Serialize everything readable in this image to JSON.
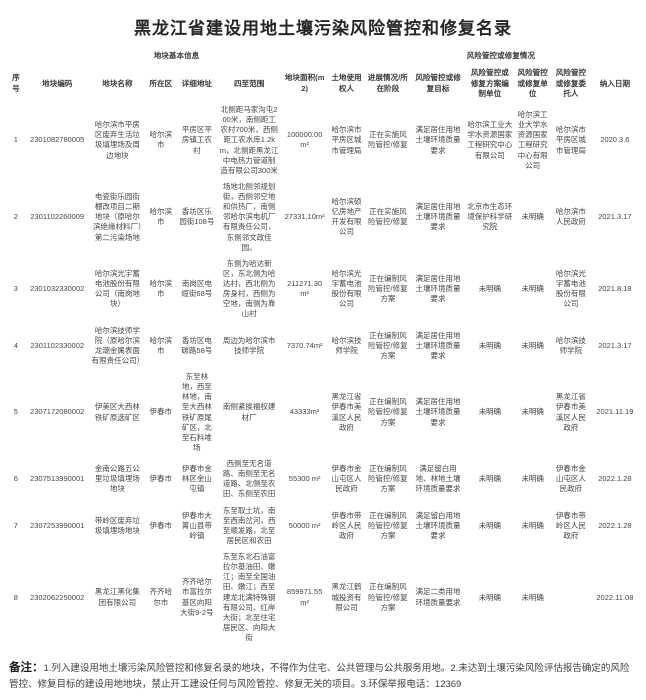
{
  "title": "黑龙江省建设用地土壤污染风险管控和修复名录",
  "colors": {
    "text": "#454545",
    "title": "#262626"
  },
  "table": {
    "group_headers": {
      "basic_info": "地块基本信息",
      "risk_info": "风险管控或修复情况"
    },
    "columns": [
      "序号",
      "地块编码",
      "地块名称",
      "所在区",
      "详细地址",
      "四至范围",
      "地块面积(m2)",
      "土地使用权人",
      "进展情况/所在阶段",
      "风险管控或修复目标",
      "风险管控或修复方案编制单位",
      "风险管控或修复单位",
      "风险管控或修复委托人",
      "纳入日期"
    ],
    "column_keys": [
      "index",
      "code",
      "name",
      "district",
      "address",
      "boundary",
      "area",
      "land-user",
      "progress",
      "target",
      "plan-unit",
      "remediation-unit",
      "client",
      "date"
    ],
    "rows": [
      [
        "1",
        "2301082780005",
        "哈尔滨市平房区废弃生活垃圾填埋场及周边地块",
        "哈尔滨市",
        "平房区平房镇工农村",
        "北侧距马家沟屯200米，南侧距工农村700米，西侧距工农水库1.2km，北侧距黑龙江中电热力管道制造有限公司300米",
        "100000.00 m²",
        "哈尔滨市平房区城市管理局",
        "正在实施风险管控/修复",
        "满足居住用地土壤环境质量要求",
        "哈尔滨工业大学水资源国家工程研究中心有限公司",
        "哈尔滨工业大学水资源国家工程研究中心有限公司",
        "哈尔滨市平房区城市管理局",
        "2020.3.6"
      ],
      [
        "2",
        "2301102260009",
        "电瓷街乐园街棚改项目二期地块（原哈尔滨绝缘材料厂）第二污染场地",
        "哈尔滨市",
        "香坊区乐园街108号",
        "场地北侧邻规划街，西侧邻空地和供热厂，南侧邻哈尔滨电机厂有限责任公司，东侧邻文政佳园。",
        "27331.10m²",
        "哈尔滨硕亿房地产开发有限公司",
        "正在实施风险管控/修复",
        "满足居住用地土壤环境质量要求",
        "北京市生态环境保护科学研究院",
        "未明确",
        "哈尔滨市人民政府",
        "2021.3.17"
      ],
      [
        "3",
        "2301032330002",
        "哈尔滨光宇蓄电池股份有限公司（南岗地块）",
        "哈尔滨市",
        "南岗区电缆街68号",
        "东侧为哈达新区，东北侧为哈达村，西北侧为房身村，西侧为空地，南侧为靠山村",
        "211271.30 m²",
        "哈尔滨光宇蓄电池股份有限公司",
        "正在编制风险管控/修复方案",
        "满足居住用地土壤环境质量要求",
        "未明确",
        "未明确",
        "哈尔滨光宇蓄电池股份有限公司",
        "2021.8.18"
      ],
      [
        "4",
        "2301102330002",
        "哈尔滨技师学院（原哈尔滨龙潮金属表面有限责任公司）",
        "哈尔滨市",
        "香坊区电碳路58号",
        "周边为哈尔滨市技师学院",
        "7370.74m²",
        "哈尔滨技师学院",
        "正在编制风险管控/修复方案",
        "满足居住用地土壤环境质量要求",
        "未明确",
        "未明确",
        "哈尔滨技师学院",
        "2021.3.17"
      ],
      [
        "5",
        "2307172080002",
        "伊美区大西林铁矿原选矿区",
        "伊春市",
        "东至林地，西至林地，南至大西林铁矿原尾矿区，北至石料堆场",
        "南侧紧挨福权建材厂",
        "43333m²",
        "黑龙江省伊春市美溪区人民政府",
        "正在编制风险管控/修复方案",
        "满足居住用地土壤环境质量要求",
        "未明确",
        "未明确",
        "黑龙江省伊春市美溪区人民政府",
        "2021.11.19"
      ],
      [
        "6",
        "2307513990001",
        "金南公路五公里垃圾填埋场地块",
        "伊春市",
        "伊春市金林区金山屯镇",
        "西侧至无名道路、南侧至无名道路、北侧至农田、东侧至农田",
        "55300 m²",
        "伊春市金山屯区人民政府",
        "正在编制风险管控/修复方案",
        "满足留白用地、林地土壤环境质量要求",
        "未明确",
        "未明确",
        "伊春市金山屯区人民政府",
        "2022.1.28"
      ],
      [
        "7",
        "2307253990001",
        "带岭区废弃垃圾填埋场地块",
        "伊春市",
        "伊春市大箐山县带岭镇",
        "东至取土坑，南至西南岔河，西至顺发路，北至居民区和农田",
        "50000 m²",
        "伊春市带岭区人民政府",
        "正在编制风险管控/修复方案",
        "满足留白用地土壤环境质量要求",
        "未明确",
        "未明确",
        "伊春市带岭区人民政府",
        "2022.1.28"
      ],
      [
        "8",
        "2302062250002",
        "黑龙江黑化集团有限公司",
        "齐齐哈尔市",
        "齐齐哈尔市富拉尔基区向阳大街9-2号",
        "东至东北石油富拉尔基油田、嫩江；南至全国油田、嫩江；西至建龙北满特殊钢有限公司、红岸大街；北至住宅居民区、向阳大街",
        "859971.55 m²",
        "黑龙江鹤城投资有限公司",
        "正在编制风险管控/修复方案",
        "满足二类用地环境质量要求",
        "未明确",
        "未明确",
        "",
        "2022.11.08"
      ]
    ]
  },
  "footer": {
    "label": "备注：",
    "text": "1.列入建设用地土壤污染风险管控和修复名录的地块，不得作为住宅、公共管理与公共服务用地。2.未达到土壤污染风险评估报告确定的风险管控、修复目标的建设用地地块，禁止开工建设任何与风险管控、修复无关的项目。3.环保举报电话：12369"
  }
}
